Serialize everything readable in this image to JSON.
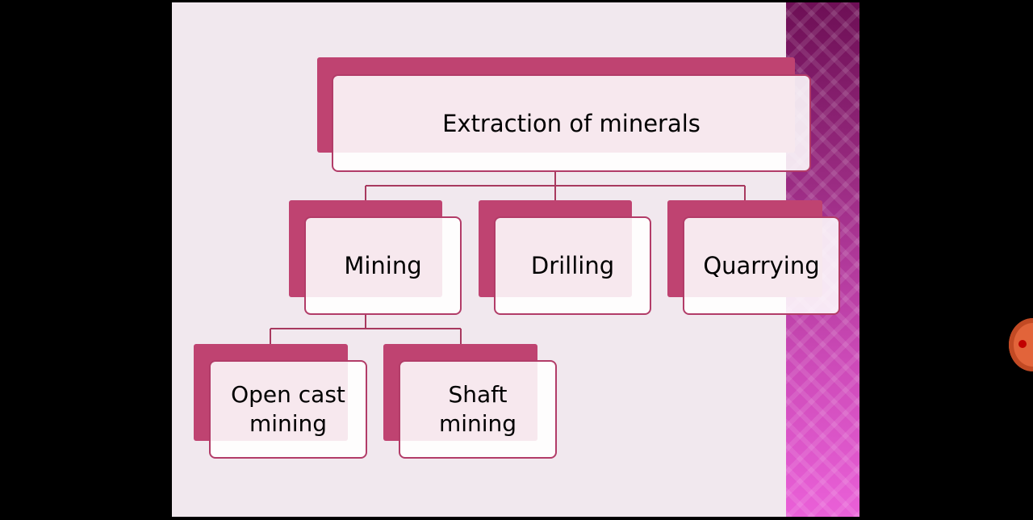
{
  "diagram": {
    "root": {
      "label": "Extraction of minerals"
    },
    "children": [
      {
        "label": "Mining",
        "children": [
          {
            "label": "Open cast\nmining"
          },
          {
            "label": "Shaft\nmining"
          }
        ]
      },
      {
        "label": "Drilling"
      },
      {
        "label": "Quarrying"
      }
    ]
  },
  "colors": {
    "box_back": "#bf4371",
    "box_border": "#b23c68",
    "connector": "#a8395f",
    "slide_bg": "#f1e8ee",
    "recorder": "#e2643a"
  },
  "icons": {
    "recorder": "record-button-icon"
  }
}
